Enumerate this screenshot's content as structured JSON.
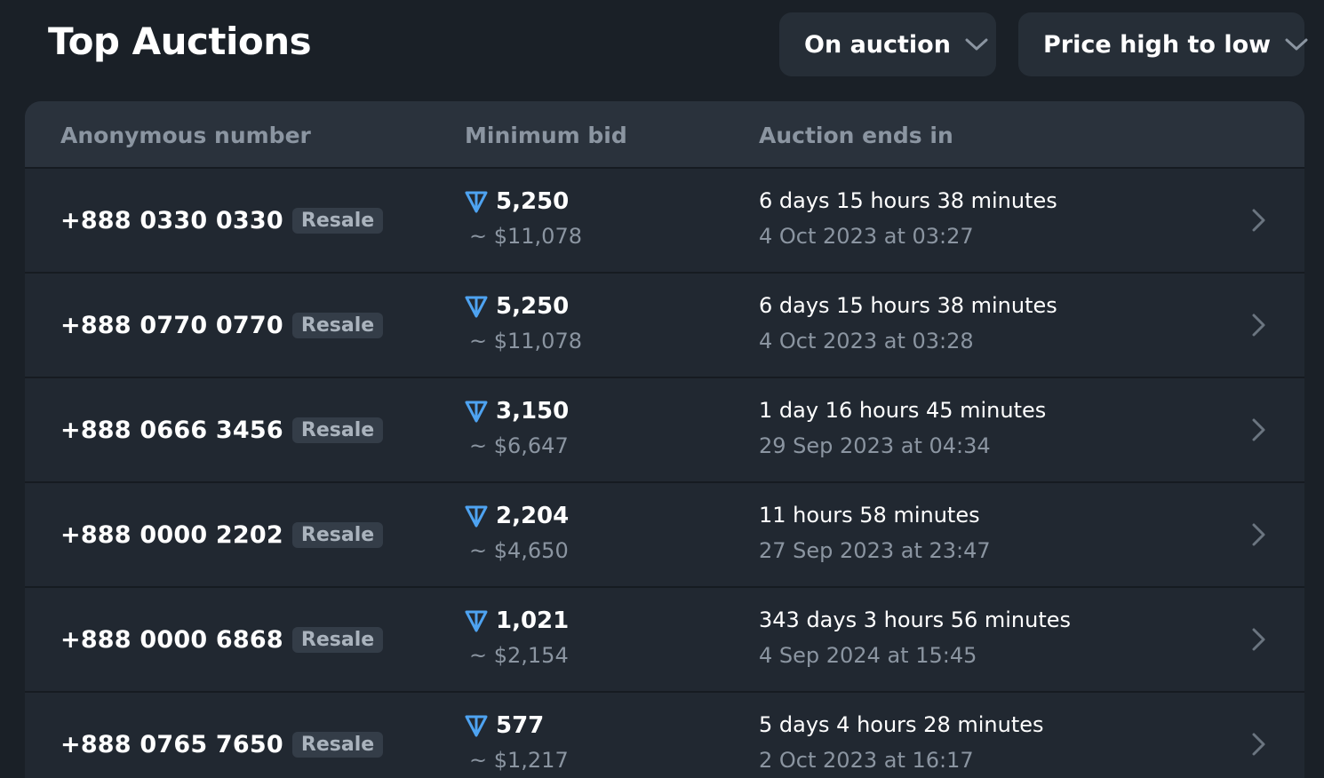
{
  "page": {
    "title": "Top Auctions"
  },
  "filters": {
    "status_label": "On auction",
    "sort_label": "Price high to low"
  },
  "table": {
    "headers": {
      "number": "Anonymous number",
      "bid": "Minimum bid",
      "ends": "Auction ends in"
    },
    "rows": [
      {
        "number": "+888 0330 0330",
        "badge": "Resale",
        "bid": "5,250",
        "usd": "~ $11,078",
        "ends_in": "6 days 15 hours 38 minutes",
        "ends_at": "4 Oct 2023 at 03:27"
      },
      {
        "number": "+888 0770 0770",
        "badge": "Resale",
        "bid": "5,250",
        "usd": "~ $11,078",
        "ends_in": "6 days 15 hours 38 minutes",
        "ends_at": "4 Oct 2023 at 03:28"
      },
      {
        "number": "+888 0666 3456",
        "badge": "Resale",
        "bid": "3,150",
        "usd": "~ $6,647",
        "ends_in": "1 day 16 hours 45 minutes",
        "ends_at": "29 Sep 2023 at 04:34"
      },
      {
        "number": "+888 0000 2202",
        "badge": "Resale",
        "bid": "2,204",
        "usd": "~ $4,650",
        "ends_in": "11 hours 58 minutes",
        "ends_at": "27 Sep 2023 at 23:47"
      },
      {
        "number": "+888 0000 6868",
        "badge": "Resale",
        "bid": "1,021",
        "usd": "~ $2,154",
        "ends_in": "343 days 3 hours 56 minutes",
        "ends_at": "4 Sep 2024 at 15:45"
      },
      {
        "number": "+888 0765 7650",
        "badge": "Resale",
        "bid": "577",
        "usd": "~ $1,217",
        "ends_in": "5 days 4 hours 28 minutes",
        "ends_at": "2 Oct 2023 at 16:17"
      }
    ]
  },
  "icons": {
    "currency": "ton-icon",
    "row_arrow": "chevron-right-icon",
    "dropdown": "chevron-down-icon"
  },
  "colors": {
    "background": "#1a2027",
    "surface": "#212831",
    "header": "#2a323c",
    "accent": "#4ea3f1",
    "muted_text": "#8b95a1"
  }
}
